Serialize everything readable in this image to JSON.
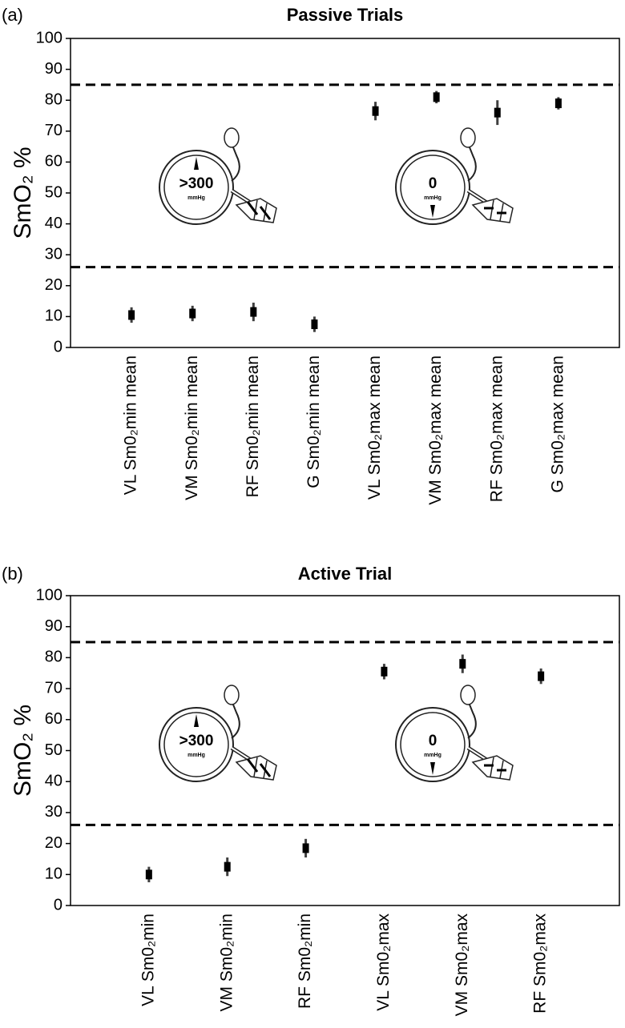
{
  "chart_data": [
    {
      "type": "errorbar",
      "panel_label": "(a)",
      "title": "Passive Trials",
      "ylabel": "SmO₂ %",
      "categories": [
        "VL Sm0₂min mean",
        "VM Sm0₂min mean",
        "RF Sm0₂min mean",
        "G Sm0₂min mean",
        "VL Sm0₂max mean",
        "VM Sm0₂max mean",
        "RF Sm0₂max mean",
        "G Sm0₂max mean"
      ],
      "values": [
        10.5,
        11,
        11.5,
        7.5,
        76.5,
        81,
        76,
        79
      ],
      "errors": [
        2.5,
        2.5,
        3,
        2.5,
        3,
        2,
        4,
        2
      ],
      "color": "#000000",
      "ylim": [
        0,
        100
      ],
      "yticks": [
        0,
        10,
        20,
        30,
        40,
        50,
        60,
        70,
        80,
        90,
        100
      ],
      "hlines": [
        85,
        26
      ],
      "annotations": [
        {
          "reading": ">300",
          "unit": "mmHg"
        },
        {
          "reading": "0",
          "unit": "mmHg"
        }
      ]
    },
    {
      "type": "errorbar",
      "panel_label": "(b)",
      "title": "Active Trial",
      "ylabel": "SmO₂ %",
      "categories": [
        "VL Sm0₂min",
        "VM Sm0₂min",
        "RF Sm0₂min",
        "VL Sm0₂max",
        "VM Sm0₂max",
        "RF Sm0₂max"
      ],
      "values": [
        10,
        12.5,
        18.5,
        75.5,
        78,
        74
      ],
      "errors": [
        2.5,
        3,
        3,
        2.5,
        3,
        2.5
      ],
      "color": "#000000",
      "ylim": [
        0,
        100
      ],
      "yticks": [
        0,
        10,
        20,
        30,
        40,
        50,
        60,
        70,
        80,
        90,
        100
      ],
      "hlines": [
        85,
        26
      ],
      "annotations": [
        {
          "reading": ">300",
          "unit": "mmHg"
        },
        {
          "reading": "0",
          "unit": "mmHg"
        }
      ]
    }
  ]
}
